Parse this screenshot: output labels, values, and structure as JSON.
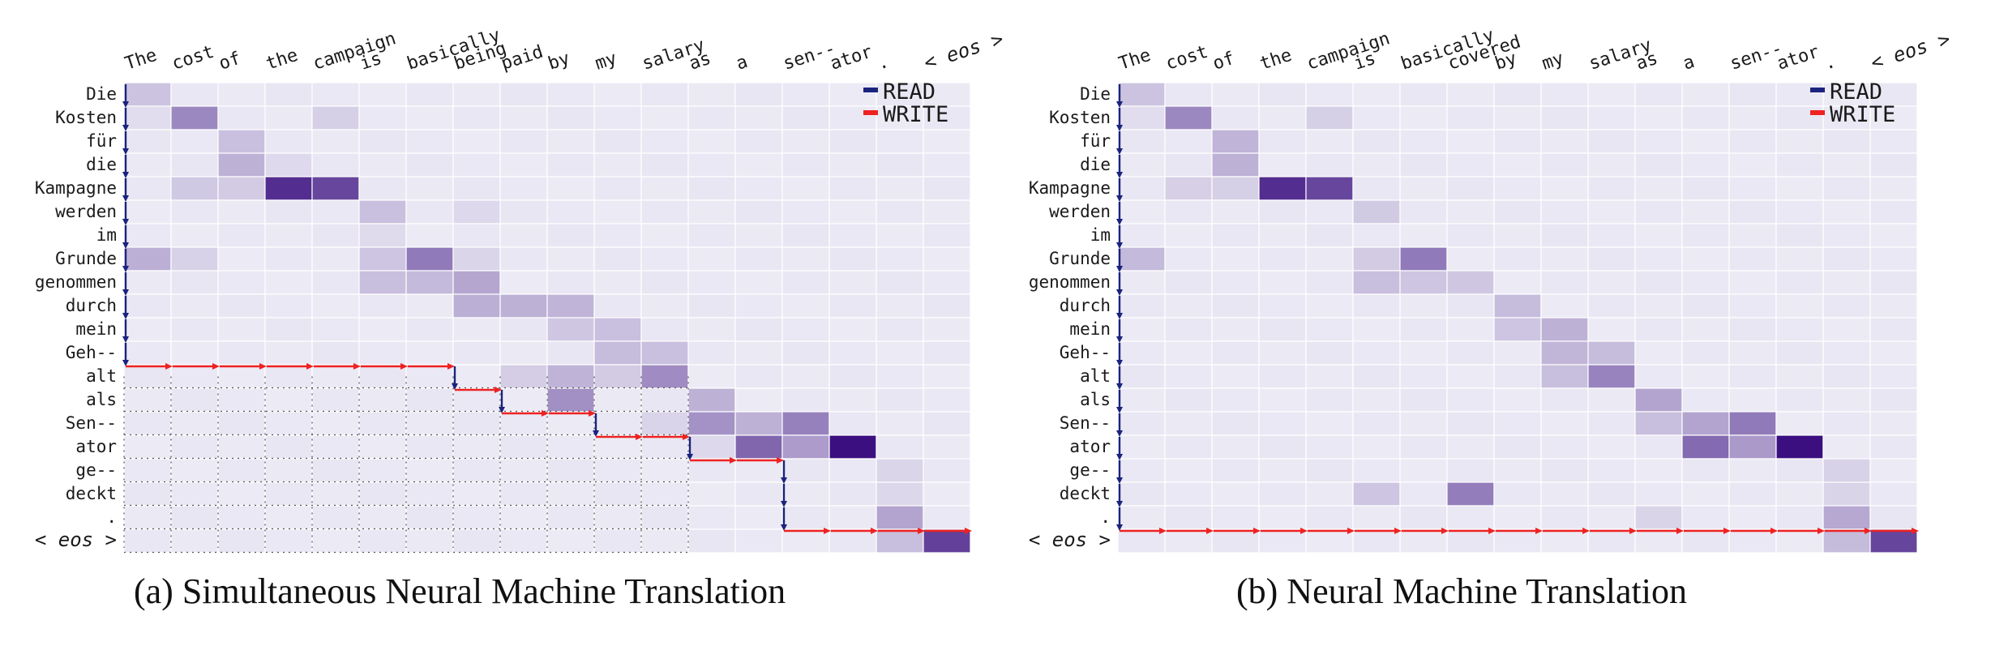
{
  "figure": {
    "source_tokens": [
      "Die",
      "Kosten",
      "für",
      "die",
      "Kampagne",
      "werden",
      "im",
      "Grunde",
      "genommen",
      "durch",
      "mein",
      "Geh--",
      "alt",
      "als",
      "Sen--",
      "ator",
      "ge--",
      "deckt",
      ".",
      "< eos >"
    ],
    "panels": [
      {
        "caption": "(a)  Simultaneous Neural Machine Translation",
        "target_tokens": [
          "The",
          "cost",
          "of",
          "the",
          "campaign",
          "is",
          "basically",
          "being",
          "paid",
          "by",
          "my",
          "salary",
          "as",
          "a",
          "sen--",
          "ator",
          ".",
          "< eos >"
        ],
        "legend": {
          "read_label": "READ",
          "write_label": "WRITE"
        },
        "attention": [
          [
            0,
            0,
            0.18
          ],
          [
            1,
            1,
            0.45
          ],
          [
            1,
            0,
            0.05
          ],
          [
            1,
            4,
            0.1
          ],
          [
            2,
            2,
            0.2
          ],
          [
            3,
            2,
            0.25
          ],
          [
            3,
            3,
            0.08
          ],
          [
            4,
            1,
            0.15
          ],
          [
            4,
            2,
            0.12
          ],
          [
            4,
            3,
            0.85
          ],
          [
            4,
            4,
            0.75
          ],
          [
            5,
            5,
            0.2
          ],
          [
            5,
            7,
            0.08
          ],
          [
            6,
            5,
            0.06
          ],
          [
            7,
            0,
            0.25
          ],
          [
            7,
            1,
            0.1
          ],
          [
            7,
            5,
            0.15
          ],
          [
            7,
            6,
            0.5
          ],
          [
            7,
            7,
            0.1
          ],
          [
            8,
            5,
            0.2
          ],
          [
            8,
            6,
            0.2
          ],
          [
            8,
            7,
            0.3
          ],
          [
            9,
            7,
            0.25
          ],
          [
            9,
            8,
            0.25
          ],
          [
            9,
            9,
            0.25
          ],
          [
            10,
            9,
            0.15
          ],
          [
            10,
            10,
            0.2
          ],
          [
            11,
            10,
            0.2
          ],
          [
            11,
            11,
            0.2
          ],
          [
            12,
            8,
            0.12
          ],
          [
            12,
            9,
            0.25
          ],
          [
            12,
            10,
            0.12
          ],
          [
            12,
            11,
            0.42
          ],
          [
            13,
            9,
            0.4
          ],
          [
            13,
            12,
            0.25
          ],
          [
            14,
            11,
            0.1
          ],
          [
            14,
            12,
            0.38
          ],
          [
            14,
            13,
            0.25
          ],
          [
            14,
            14,
            0.48
          ],
          [
            15,
            12,
            0.08
          ],
          [
            15,
            13,
            0.58
          ],
          [
            15,
            14,
            0.35
          ],
          [
            15,
            15,
            1.0
          ],
          [
            16,
            16,
            0.1
          ],
          [
            17,
            16,
            0.08
          ],
          [
            18,
            16,
            0.3
          ],
          [
            19,
            16,
            0.2
          ],
          [
            19,
            17,
            0.75
          ]
        ],
        "policy": {
          "start": [
            0,
            0
          ],
          "moves": [
            "R",
            "R",
            "R",
            "R",
            "R",
            "R",
            "R",
            "R",
            "R",
            "R",
            "R",
            "R",
            "W",
            "W",
            "W",
            "W",
            "W",
            "W",
            "W",
            "R",
            "W",
            "R",
            "W",
            "W",
            "R",
            "W",
            "W",
            "R",
            "W",
            "W",
            "R",
            "R",
            "R",
            "W",
            "W",
            "W",
            "W"
          ]
        },
        "dotted_grid": true
      },
      {
        "caption": "(b)  Neural Machine Translation",
        "target_tokens": [
          "The",
          "cost",
          "of",
          "the",
          "campaign",
          "is",
          "basically",
          "covered",
          "by",
          "my",
          "salary",
          "as",
          "a",
          "sen--",
          "ator",
          ".",
          "< eos >"
        ],
        "legend": {
          "read_label": "READ",
          "write_label": "WRITE"
        },
        "attention": [
          [
            0,
            0,
            0.18
          ],
          [
            1,
            1,
            0.45
          ],
          [
            1,
            0,
            0.05
          ],
          [
            1,
            4,
            0.1
          ],
          [
            2,
            2,
            0.25
          ],
          [
            3,
            2,
            0.25
          ],
          [
            4,
            1,
            0.12
          ],
          [
            4,
            2,
            0.1
          ],
          [
            4,
            3,
            0.85
          ],
          [
            4,
            4,
            0.75
          ],
          [
            5,
            5,
            0.15
          ],
          [
            7,
            0,
            0.2
          ],
          [
            7,
            5,
            0.12
          ],
          [
            7,
            6,
            0.5
          ],
          [
            8,
            5,
            0.2
          ],
          [
            8,
            6,
            0.15
          ],
          [
            8,
            7,
            0.15
          ],
          [
            9,
            8,
            0.2
          ],
          [
            10,
            8,
            0.15
          ],
          [
            10,
            9,
            0.25
          ],
          [
            11,
            9,
            0.22
          ],
          [
            11,
            10,
            0.2
          ],
          [
            12,
            9,
            0.2
          ],
          [
            12,
            10,
            0.45
          ],
          [
            13,
            11,
            0.3
          ],
          [
            14,
            11,
            0.2
          ],
          [
            14,
            12,
            0.3
          ],
          [
            14,
            13,
            0.5
          ],
          [
            15,
            12,
            0.58
          ],
          [
            15,
            13,
            0.35
          ],
          [
            15,
            14,
            1.0
          ],
          [
            16,
            15,
            0.1
          ],
          [
            17,
            5,
            0.15
          ],
          [
            17,
            7,
            0.5
          ],
          [
            17,
            15,
            0.08
          ],
          [
            18,
            11,
            0.08
          ],
          [
            18,
            15,
            0.3
          ],
          [
            19,
            15,
            0.2
          ],
          [
            19,
            16,
            0.75
          ]
        ],
        "policy": {
          "start": [
            0,
            0
          ],
          "moves": [
            "R",
            "R",
            "R",
            "R",
            "R",
            "R",
            "R",
            "R",
            "R",
            "R",
            "R",
            "R",
            "R",
            "R",
            "R",
            "R",
            "R",
            "R",
            "R",
            "W",
            "W",
            "W",
            "W",
            "W",
            "W",
            "W",
            "W",
            "W",
            "W",
            "W",
            "W",
            "W",
            "W",
            "W",
            "W",
            "W"
          ]
        },
        "dotted_grid": false
      }
    ],
    "colors": {
      "read": "#1a237e",
      "write": "#ee2222",
      "cell_base": "#ecebf5",
      "cell_max": "#3b0f80"
    }
  }
}
